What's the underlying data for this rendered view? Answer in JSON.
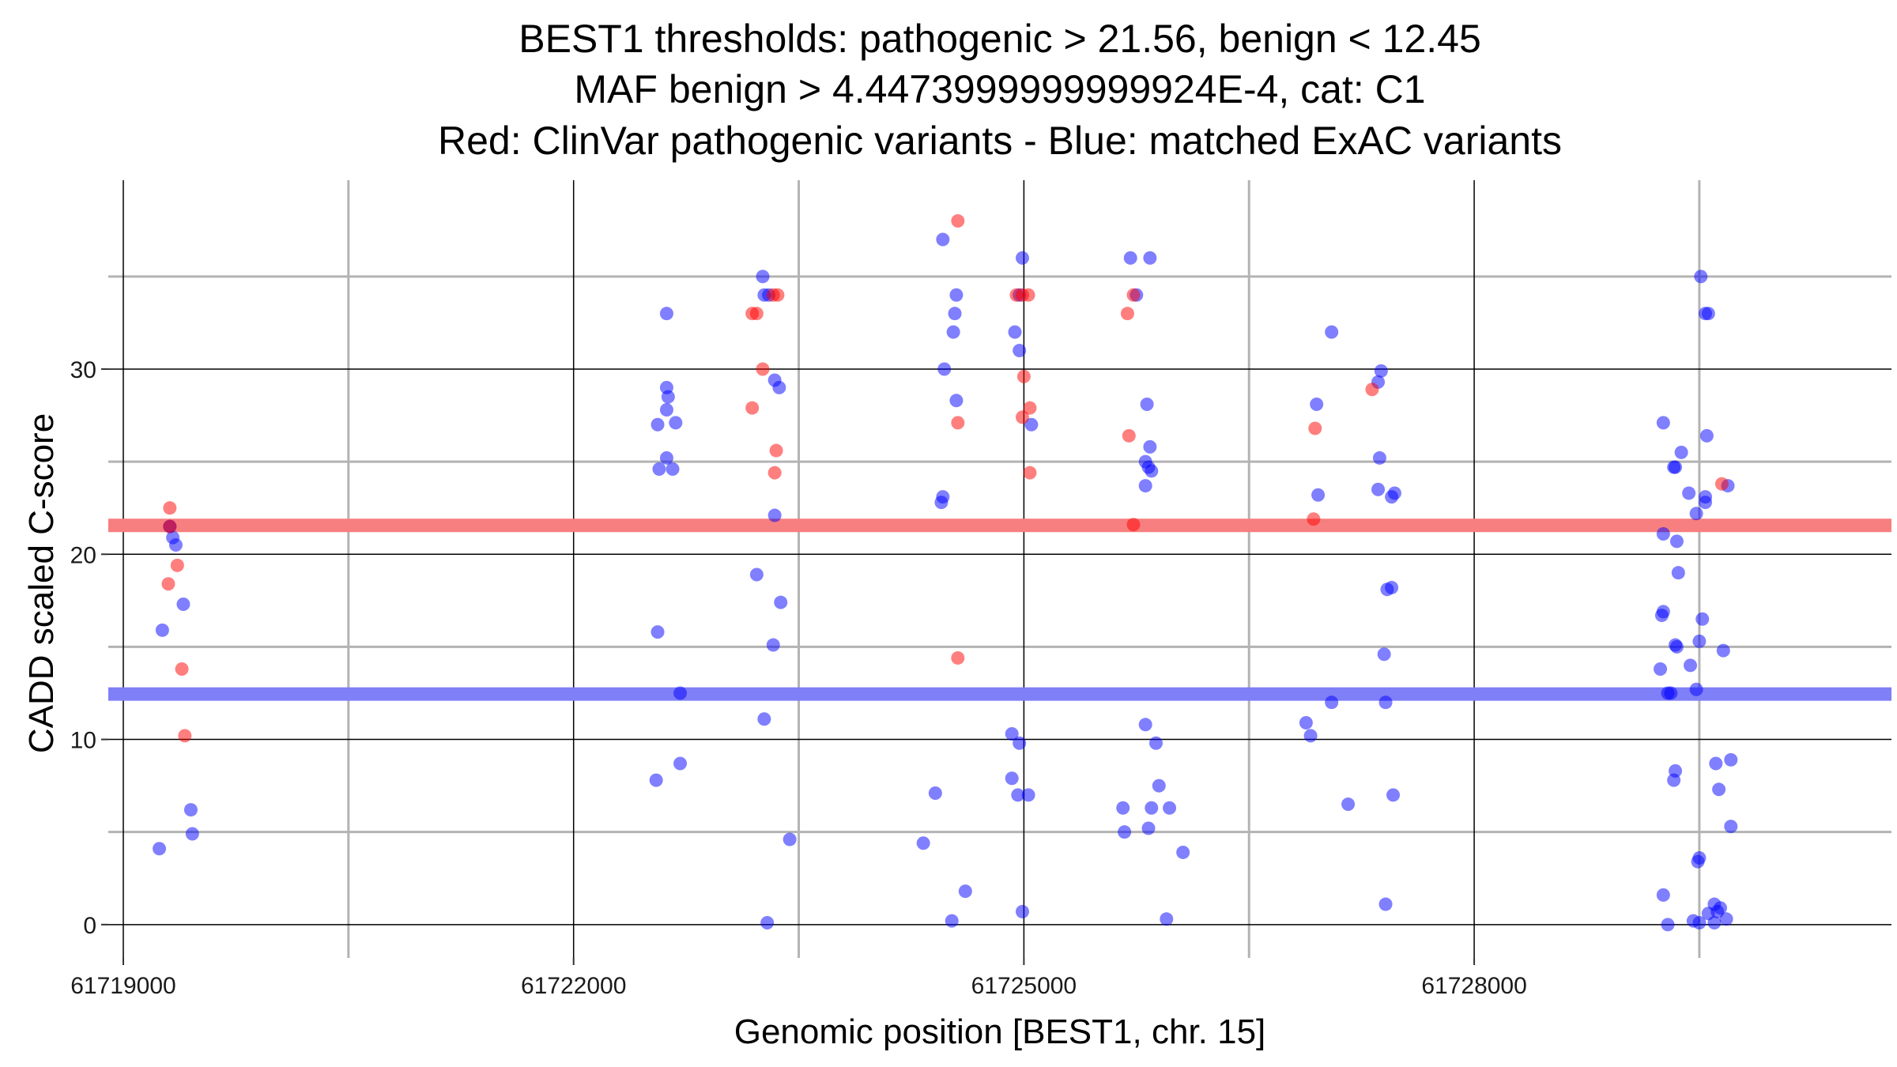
{
  "chart_data": {
    "type": "scatter",
    "title": [
      "BEST1 thresholds: pathogenic > 21.56, benign < 12.45",
      "MAF benign > 4.4473999999999924E-4, cat: C1",
      "Red: ClinVar pathogenic variants - Blue: matched ExAC variants"
    ],
    "xlabel": "Genomic position [BEST1, chr. 15]",
    "ylabel": "CADD scaled C-score",
    "xlim": [
      61718900,
      61730780
    ],
    "ylim": [
      -1.8,
      40.2
    ],
    "x_major_ticks": [
      61719000,
      61722000,
      61725000,
      61728000
    ],
    "x_tick_labels": [
      "61719000",
      "61722000",
      "61725000",
      "61728000"
    ],
    "x_minor_gridlines": [
      61720500,
      61723500,
      61726500,
      61729500
    ],
    "y_major_ticks": [
      0,
      10,
      20,
      30
    ],
    "y_tick_labels": [
      "0",
      "10",
      "20",
      "30"
    ],
    "y_minor_gridlines": [
      5,
      15,
      25,
      35
    ],
    "grid": true,
    "thresholds": [
      {
        "name": "pathogenic",
        "value": 21.56,
        "color": "#f77f7f"
      },
      {
        "name": "benign",
        "value": 12.45,
        "color": "#7f7ff7"
      }
    ],
    "series": [
      {
        "color": "#ff0000",
        "points": [
          [
            61719310,
            22.5
          ],
          [
            61719310,
            21.5
          ],
          [
            61719360,
            19.4
          ],
          [
            61719300,
            18.4
          ],
          [
            61719390,
            13.8
          ],
          [
            61719410,
            10.2
          ],
          [
            61723190,
            33.0
          ],
          [
            61723220,
            33.0
          ],
          [
            61723260,
            30.0
          ],
          [
            61723190,
            27.9
          ],
          [
            61723330,
            34.0
          ],
          [
            61723360,
            34.0
          ],
          [
            61723350,
            25.6
          ],
          [
            61723340,
            24.4
          ],
          [
            61724560,
            27.1
          ],
          [
            61724560,
            14.4
          ],
          [
            61724560,
            38.0
          ],
          [
            61724950,
            34.0
          ],
          [
            61724990,
            34.0
          ],
          [
            61725030,
            34.0
          ],
          [
            61725000,
            29.6
          ],
          [
            61724990,
            27.4
          ],
          [
            61725040,
            27.9
          ],
          [
            61725040,
            24.4
          ],
          [
            61725730,
            34.0
          ],
          [
            61725690,
            33.0
          ],
          [
            61725700,
            26.4
          ],
          [
            61725730,
            21.6
          ],
          [
            61726940,
            26.8
          ],
          [
            61726930,
            21.9
          ],
          [
            61727320,
            28.9
          ],
          [
            61729650,
            23.8
          ]
        ]
      },
      {
        "color": "#0000ff",
        "points": [
          [
            61719310,
            21.5
          ],
          [
            61719330,
            20.9
          ],
          [
            61719350,
            20.5
          ],
          [
            61719400,
            17.3
          ],
          [
            61719260,
            15.9
          ],
          [
            61719450,
            6.2
          ],
          [
            61719460,
            4.9
          ],
          [
            61719240,
            4.1
          ],
          [
            61722560,
            27.0
          ],
          [
            61722570,
            24.6
          ],
          [
            61722620,
            33.0
          ],
          [
            61722620,
            29.0
          ],
          [
            61722630,
            28.5
          ],
          [
            61722620,
            27.8
          ],
          [
            61722680,
            27.1
          ],
          [
            61722620,
            25.2
          ],
          [
            61722660,
            24.6
          ],
          [
            61722560,
            15.8
          ],
          [
            61722710,
            12.5
          ],
          [
            61722550,
            7.8
          ],
          [
            61722710,
            8.7
          ],
          [
            61723260,
            35.0
          ],
          [
            61723270,
            34.0
          ],
          [
            61723300,
            34.0
          ],
          [
            61723340,
            29.4
          ],
          [
            61723370,
            29.0
          ],
          [
            61723340,
            22.1
          ],
          [
            61723220,
            18.9
          ],
          [
            61723380,
            17.4
          ],
          [
            61723330,
            15.1
          ],
          [
            61723270,
            11.1
          ],
          [
            61723440,
            4.6
          ],
          [
            61723290,
            0.1
          ],
          [
            61724460,
            37.0
          ],
          [
            61724550,
            34.0
          ],
          [
            61724540,
            33.0
          ],
          [
            61724530,
            32.0
          ],
          [
            61724470,
            30.0
          ],
          [
            61724550,
            28.3
          ],
          [
            61724460,
            23.1
          ],
          [
            61724450,
            22.8
          ],
          [
            61724410,
            7.1
          ],
          [
            61724330,
            4.4
          ],
          [
            61724610,
            1.8
          ],
          [
            61724520,
            0.2
          ],
          [
            61724990,
            36.0
          ],
          [
            61724970,
            34.0
          ],
          [
            61724940,
            32.0
          ],
          [
            61724970,
            31.0
          ],
          [
            61725050,
            27.0
          ],
          [
            61724920,
            10.3
          ],
          [
            61724970,
            9.8
          ],
          [
            61724920,
            7.9
          ],
          [
            61724960,
            7.0
          ],
          [
            61725030,
            7.0
          ],
          [
            61724990,
            0.7
          ],
          [
            61725710,
            36.0
          ],
          [
            61725840,
            36.0
          ],
          [
            61725750,
            34.0
          ],
          [
            61725820,
            28.1
          ],
          [
            61725840,
            25.8
          ],
          [
            61725810,
            25.0
          ],
          [
            61725830,
            24.7
          ],
          [
            61725850,
            24.5
          ],
          [
            61725810,
            23.7
          ],
          [
            61725810,
            10.8
          ],
          [
            61725880,
            9.8
          ],
          [
            61725660,
            6.3
          ],
          [
            61725850,
            6.3
          ],
          [
            61725900,
            7.5
          ],
          [
            61725970,
            6.3
          ],
          [
            61725830,
            5.2
          ],
          [
            61725670,
            5.0
          ],
          [
            61726060,
            3.9
          ],
          [
            61725950,
            0.3
          ],
          [
            61727050,
            32.0
          ],
          [
            61726950,
            28.1
          ],
          [
            61726960,
            23.2
          ],
          [
            61726880,
            10.9
          ],
          [
            61726910,
            10.2
          ],
          [
            61727050,
            12.0
          ],
          [
            61727160,
            6.5
          ],
          [
            61727380,
            29.9
          ],
          [
            61727360,
            29.3
          ],
          [
            61727370,
            25.2
          ],
          [
            61727360,
            23.5
          ],
          [
            61727450,
            23.1
          ],
          [
            61727470,
            23.3
          ],
          [
            61727420,
            18.1
          ],
          [
            61727450,
            18.2
          ],
          [
            61727400,
            14.6
          ],
          [
            61727410,
            12.0
          ],
          [
            61727460,
            7.0
          ],
          [
            61727410,
            1.1
          ],
          [
            61729260,
            27.1
          ],
          [
            61729330,
            24.7
          ],
          [
            61729340,
            24.7
          ],
          [
            61729380,
            25.5
          ],
          [
            61729260,
            21.1
          ],
          [
            61729350,
            20.7
          ],
          [
            61729360,
            19.0
          ],
          [
            61729260,
            16.9
          ],
          [
            61729250,
            16.7
          ],
          [
            61729340,
            15.1
          ],
          [
            61729350,
            15.0
          ],
          [
            61729240,
            13.8
          ],
          [
            61729290,
            12.5
          ],
          [
            61729310,
            12.5
          ],
          [
            61729340,
            8.3
          ],
          [
            61729330,
            7.8
          ],
          [
            61729260,
            1.6
          ],
          [
            61729290,
            0.0
          ],
          [
            61729430,
            23.3
          ],
          [
            61729480,
            22.2
          ],
          [
            61729500,
            15.3
          ],
          [
            61729440,
            14.0
          ],
          [
            61729480,
            12.7
          ],
          [
            61729490,
            3.4
          ],
          [
            61729500,
            3.6
          ],
          [
            61729520,
            16.5
          ],
          [
            61729540,
            23.1
          ],
          [
            61729540,
            22.8
          ],
          [
            61729550,
            26.4
          ],
          [
            61729510,
            35.0
          ],
          [
            61729540,
            33.0
          ],
          [
            61729560,
            33.0
          ],
          [
            61729610,
            8.7
          ],
          [
            61729630,
            7.3
          ],
          [
            61729660,
            14.8
          ],
          [
            61729690,
            23.7
          ],
          [
            61729710,
            8.9
          ],
          [
            61729710,
            5.3
          ],
          [
            61729460,
            0.2
          ],
          [
            61729500,
            0.1
          ],
          [
            61729560,
            0.6
          ],
          [
            61729600,
            1.1
          ],
          [
            61729620,
            0.7
          ],
          [
            61729640,
            0.9
          ],
          [
            61729600,
            0.1
          ],
          [
            61729680,
            0.3
          ]
        ]
      }
    ]
  }
}
